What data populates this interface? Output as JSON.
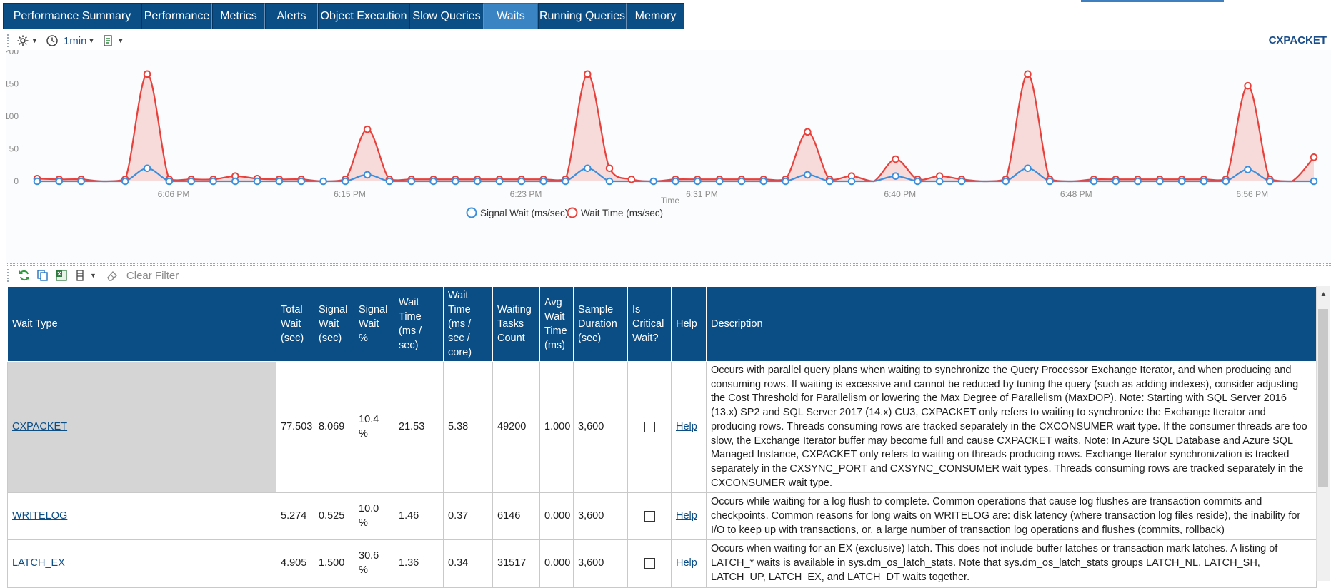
{
  "tabs": [
    {
      "label": "Performance Summary",
      "active": false
    },
    {
      "label": "Performance",
      "active": false
    },
    {
      "label": "Metrics",
      "active": false
    },
    {
      "label": "Alerts",
      "active": false
    },
    {
      "label": "Object Execution",
      "active": false
    },
    {
      "label": "Slow Queries",
      "active": false
    },
    {
      "label": "Waits",
      "active": true
    },
    {
      "label": "Running Queries",
      "active": false
    },
    {
      "label": "Memory",
      "active": false
    }
  ],
  "chart_toolbar": {
    "settings_icon": "gear-icon",
    "interval_icon": "clock-icon",
    "interval": "1min",
    "export_icon": "export-icon"
  },
  "chart_title": "CXPACKET",
  "chart_data": {
    "type": "area",
    "title": "CXPACKET",
    "xlabel": "Time",
    "ylabel": "",
    "ylim": [
      0,
      200
    ],
    "yticks": [
      0,
      50,
      100,
      150,
      200
    ],
    "xticks": [
      "6:06 PM",
      "6:15 PM",
      "6:23 PM",
      "6:31 PM",
      "6:40 PM",
      "6:48 PM",
      "6:56 PM"
    ],
    "legend_position": "bottom-center",
    "grid": false,
    "series": [
      {
        "name": "Signal Wait (ms/sec)",
        "color": "#3b8fdc",
        "values": [
          0,
          0,
          0,
          null,
          0,
          20,
          0,
          0,
          0,
          0,
          0,
          0,
          0,
          0,
          0,
          10,
          0,
          0,
          0,
          0,
          0,
          0,
          0,
          0,
          0,
          20,
          0,
          null,
          0,
          0,
          0,
          0,
          0,
          0,
          0,
          10,
          0,
          0,
          null,
          8,
          0,
          0,
          0,
          null,
          0,
          20,
          0,
          null,
          0,
          0,
          0,
          0,
          0,
          0,
          0,
          18,
          0,
          null,
          0
        ]
      },
      {
        "name": "Wait Time (ms/sec)",
        "color": "#e8413c",
        "values": [
          4,
          3,
          3,
          null,
          3,
          165,
          3,
          3,
          3,
          8,
          4,
          3,
          3,
          null,
          3,
          80,
          3,
          3,
          3,
          3,
          3,
          3,
          3,
          3,
          3,
          165,
          20,
          3,
          null,
          3,
          3,
          3,
          3,
          3,
          3,
          76,
          3,
          8,
          null,
          34,
          3,
          8,
          3,
          null,
          3,
          165,
          3,
          null,
          3,
          3,
          3,
          3,
          3,
          3,
          3,
          147,
          3,
          null,
          37
        ]
      }
    ]
  },
  "grid_toolbar": {
    "refresh_icon": "refresh-icon",
    "copy_icon": "copy-icon",
    "excel_icon": "excel-icon",
    "columns_icon": "columns-icon",
    "clear_filter": "Clear Filter"
  },
  "grid": {
    "headers": [
      "Wait Type",
      "Total Wait (sec)",
      "Signal Wait (sec)",
      "Signal Wait %",
      "Wait Time (ms / sec)",
      "Wait Time (ms / sec / core)",
      "Waiting Tasks Count",
      "Avg Wait Time (ms)",
      "Sample Duration (sec)",
      "Is Critical Wait?",
      "Help",
      "Description"
    ],
    "rows": [
      {
        "wait_type": "CXPACKET",
        "total_wait": "77.503",
        "signal_wait": "8.069",
        "signal_pct": "10.4 %",
        "wait_time": "21.53",
        "wait_time_core": "5.38",
        "tasks": "49200",
        "avg_wait": "1.000",
        "duration": "3,600",
        "critical": false,
        "help": "Help",
        "description": "Occurs with parallel query plans when waiting to synchronize the Query Processor Exchange Iterator, and when producing and consuming rows. If waiting is excessive and cannot be reduced by tuning the query (such as adding indexes), consider adjusting the Cost Threshold for Parallelism or lowering the Max Degree of Parallelism (MaxDOP).     Note:  Starting with SQL Server 2016 (13.x) SP2 and SQL Server 2017 (14.x) CU3, CXPACKET only refers to waiting to synchronize the Exchange Iterator and producing rows. Threads consuming rows are tracked separately in the CXCONSUMER wait type. If the consumer threads are too slow, the Exchange Iterator buffer may become full and cause CXPACKET waits.     Note:  In Azure SQL Database and Azure SQL Managed Instance, CXPACKET only refers to waiting on threads producing rows. Exchange Iterator synchronization is tracked separately in the CXSYNC_PORT and CXSYNC_CONSUMER wait types. Threads consuming rows are tracked separately in the CXCONSUMER wait type."
      },
      {
        "wait_type": "WRITELOG",
        "total_wait": "5.274",
        "signal_wait": "0.525",
        "signal_pct": "10.0 %",
        "wait_time": "1.46",
        "wait_time_core": "0.37",
        "tasks": "6146",
        "avg_wait": "0.000",
        "duration": "3,600",
        "critical": false,
        "help": "Help",
        "description": "Occurs while waiting for a log flush to complete. Common operations that cause log flushes are transaction commits and checkpoints. Common reasons for long waits on WRITELOG are: disk latency (where transaction log files reside), the inability for I/O to keep up with transactions, or, a large number of transaction log operations and flushes (commits, rollback)"
      },
      {
        "wait_type": "LATCH_EX",
        "total_wait": "4.905",
        "signal_wait": "1.500",
        "signal_pct": "30.6 %",
        "wait_time": "1.36",
        "wait_time_core": "0.34",
        "tasks": "31517",
        "avg_wait": "0.000",
        "duration": "3,600",
        "critical": false,
        "help": "Help",
        "description": "Occurs when waiting for an EX (exclusive) latch. This does not include buffer latches or transaction mark latches. A listing of LATCH_* waits is available in sys.dm_os_latch_stats. Note that sys.dm_os_latch_stats groups LATCH_NL, LATCH_SH, LATCH_UP, LATCH_EX, and LATCH_DT waits together."
      }
    ]
  }
}
